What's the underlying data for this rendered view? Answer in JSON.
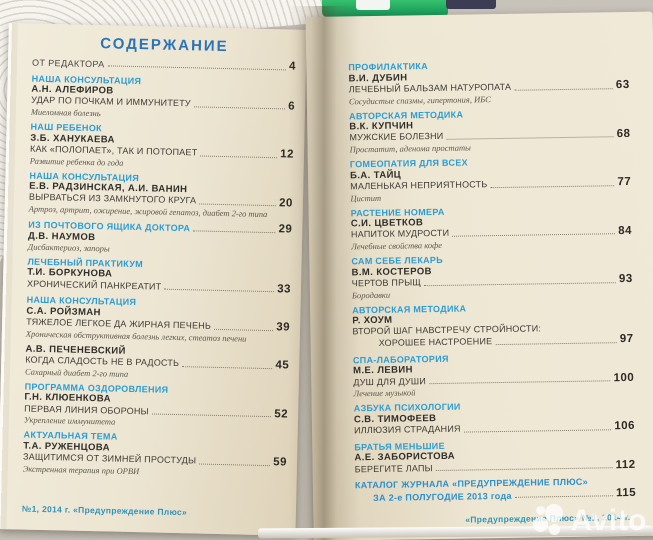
{
  "toc": {
    "title": "СОДЕРЖАНИЕ",
    "pre_entry": {
      "label": "ОТ РЕДАКТОРА",
      "page": "4"
    }
  },
  "left_page": {
    "entries": [
      {
        "rubric": "НАША КОНСУЛЬТАЦИЯ",
        "author": "А.Н. АЛЕФИРОВ",
        "title": "УДАР ПО ПОЧКАМ И ИММУНИТЕТУ",
        "page": "6",
        "subtitle": "Миеломная болезнь"
      },
      {
        "rubric": "НАШ РЕБЕНОК",
        "author": "З.Б. ХАНУКАЕВА",
        "title": "КАК «ПОЛОПАЕТ», ТАК И ПОТОПАЕТ",
        "page": "12",
        "subtitle": "Развитие ребенка до года"
      },
      {
        "rubric": "НАША КОНСУЛЬТАЦИЯ",
        "author": "Е.В. РАДЗИНСКАЯ, А.И. ВАНИН",
        "title": "ВЫРВАТЬСЯ ИЗ ЗАМКНУТОГО КРУГА",
        "page": "20",
        "subtitle": "Артроз, артрит, ожирение, жировой гепатоз, диабет 2-го типа"
      },
      {
        "rubric": "ИЗ ПОЧТОВОГО ЯЩИКА ДОКТОРА",
        "rubric_page": "29",
        "author": "Д.В. НАУМОВ",
        "subtitle": "Дисбактериоз, запоры"
      },
      {
        "rubric": "ЛЕЧЕБНЫЙ ПРАКТИКУМ",
        "author": "Т.И. БОРКУНОВА",
        "title": "ХРОНИЧЕСКИЙ ПАНКРЕАТИТ",
        "page": "33"
      },
      {
        "rubric": "НАША КОНСУЛЬТАЦИЯ",
        "author": "С.А. РОЙЗМАН",
        "title": "ТЯЖЕЛОЕ ЛЕГКОЕ ДА ЖИРНАЯ ПЕЧЕНЬ",
        "page": "39",
        "subtitle": "Хроническая обструктивная болезнь легких, стеатоз печени"
      },
      {
        "author": "А.В. ПЕЧЕНЕВСКИЙ",
        "title": "КОГДА СЛАДОСТЬ НЕ В РАДОСТЬ",
        "page": "45",
        "subtitle": "Сахарный диабет 2-го типа"
      },
      {
        "rubric": "ПРОГРАММА ОЗДОРОВЛЕНИЯ",
        "author": "Г.Н. КЛЮЕНКОВА",
        "title": "ПЕРВАЯ ЛИНИЯ ОБОРОНЫ",
        "page": "52",
        "subtitle": "Укрепление иммунитета"
      },
      {
        "rubric": "АКТУАЛЬНАЯ ТЕМА",
        "author": "Т.А. РУЖЕНЦОВА",
        "title": "ЗАЩИТИМСЯ ОТ ЗИМНЕЙ ПРОСТУДЫ",
        "page": "59",
        "subtitle": "Экстренная терапия при ОРВИ"
      }
    ],
    "footer": "№1, 2014 г. «Предупреждение Плюс»"
  },
  "right_page": {
    "entries": [
      {
        "rubric": "ПРОФИЛАКТИКА",
        "author": "В.И. ДУБИН",
        "title": "ЛЕЧЕБНЫЙ БАЛЬЗАМ НАТУРОПАТА",
        "page": "63",
        "subtitle": "Сосудистые спазмы, гипертония, ИБС"
      },
      {
        "rubric": "АВТОРСКАЯ МЕТОДИКА",
        "author": "В.К. КУПЧИН",
        "title": "МУЖСКИЕ БОЛЕЗНИ",
        "page": "68",
        "subtitle": "Простатит, аденома простаты"
      },
      {
        "rubric": "ГОМЕОПАТИЯ ДЛЯ ВСЕХ",
        "author": "Б.А. ТАЙЦ",
        "title": "МАЛЕНЬКАЯ НЕПРИЯТНОСТЬ",
        "page": "77",
        "subtitle": "Цистит"
      },
      {
        "rubric": "РАСТЕНИЕ НОМЕРА",
        "author": "С.И. ЦВЕТКОВ",
        "title": "НАПИТОК МУДРОСТИ",
        "page": "84",
        "subtitle": "Лечебные свойства кофе"
      },
      {
        "rubric": "САМ СЕБЕ ЛЕКАРЬ",
        "author": "В.М. КОСТЕРОВ",
        "title": "ЧЕРТОВ ПРЫЩ",
        "page": "93",
        "subtitle": "Бородавки"
      },
      {
        "rubric": "АВТОРСКАЯ МЕТОДИКА",
        "author": "Р. ХОУМ",
        "title": "ВТОРОЙ ШАГ НАВСТРЕЧУ СТРОЙНОСТИ:",
        "title2": "ХОРОШЕЕ НАСТРОЕНИЕ",
        "page": "97"
      },
      {
        "rubric": "СПА-ЛАБОРАТОРИЯ",
        "author": "М.Е. ЛЕВИН",
        "title": "ДУШ ДЛЯ ДУШИ",
        "page": "100",
        "subtitle": "Лечение музыкой"
      },
      {
        "rubric": "АЗБУКА ПСИХОЛОГИИ",
        "author": "С.В. ТИМОФЕЕВ",
        "title": "ИЛЛЮЗИЯ СТРАДАНИЯ",
        "page": "106"
      },
      {
        "rubric": "БРАТЬЯ МЕНЬШИЕ",
        "author": "А.Е. ЗАБОРИСТОВА",
        "title": "БЕРЕГИТЕ ЛАПЫ",
        "page": "112"
      }
    ],
    "catalog": {
      "line1": "КАТАЛОГ ЖУРНАЛА «ПРЕДУПРЕЖДЕНИЕ ПЛЮС»",
      "line2": "ЗА 2-е ПОЛУГОДИЕ 2013 года",
      "page": "115"
    },
    "footer": "«Предупреждение Плюс» №1, 2014 г."
  },
  "watermark": {
    "label": "Avito"
  },
  "colors": {
    "title_blue": "#2b74b9",
    "rubric_blue": "#2b9dd4",
    "footer_teal": "#2f93ba",
    "page_cream": "#ece5d2",
    "text_dark": "#3a3933",
    "marker_green": "#1fa862"
  }
}
